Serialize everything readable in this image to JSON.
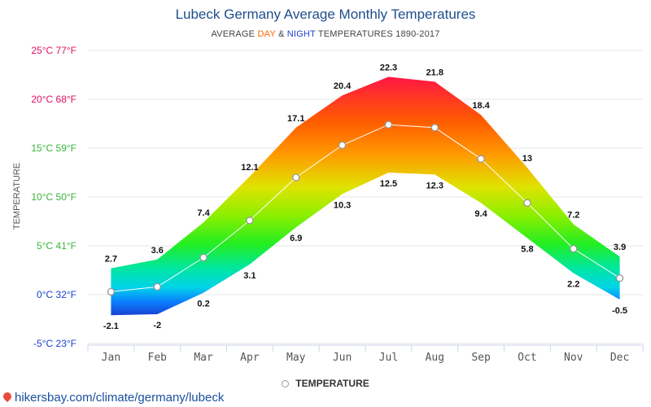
{
  "title": "Lubeck Germany Average Monthly Temperatures",
  "subtitle": {
    "prefix": "AVERAGE ",
    "day": "DAY",
    "amp": " & ",
    "night": "NIGHT",
    "suffix": " TEMPERATURES 1890-2017"
  },
  "legend": {
    "label": "TEMPERATURE",
    "icon": "circle-marker-icon"
  },
  "source": {
    "text": "hikersbay.com/climate/germany/lubeck",
    "icon": "location-pin-icon"
  },
  "colors": {
    "day_label": "#ff6600",
    "night_label": "#1a3fd0",
    "title": "#1f4e8c",
    "line": "#ffffff",
    "grid": "#e6e6e6"
  },
  "chart_data": {
    "type": "area",
    "categories": [
      "Jan",
      "Feb",
      "Mar",
      "Apr",
      "May",
      "Jun",
      "Jul",
      "Aug",
      "Sep",
      "Oct",
      "Nov",
      "Dec"
    ],
    "ylabel": "TEMPERATURE",
    "ylim": [
      -5,
      25
    ],
    "y_ticks": [
      {
        "value": 25,
        "label": "25°C 77°F",
        "color": "#e0115f"
      },
      {
        "value": 20,
        "label": "20°C 68°F",
        "color": "#e0115f"
      },
      {
        "value": 15,
        "label": "15°C 59°F",
        "color": "#3cb33c"
      },
      {
        "value": 10,
        "label": "10°C 50°F",
        "color": "#3cb33c"
      },
      {
        "value": 5,
        "label": "5°C 41°F",
        "color": "#3cb33c"
      },
      {
        "value": 0,
        "label": "0°C 32°F",
        "color": "#1a3fd0"
      },
      {
        "value": -5,
        "label": "-5°C 23°F",
        "color": "#1a3fd0"
      }
    ],
    "series": [
      {
        "name": "DAY",
        "values": [
          2.7,
          3.6,
          7.4,
          12.1,
          17.1,
          20.4,
          22.3,
          21.8,
          18.4,
          13,
          7.2,
          3.9
        ]
      },
      {
        "name": "NIGHT",
        "values": [
          -2.1,
          -2,
          0.2,
          3.1,
          6.9,
          10.3,
          12.5,
          12.3,
          9.4,
          5.8,
          2.2,
          -0.5
        ]
      },
      {
        "name": "TEMPERATURE",
        "values": [
          0.3,
          0.8,
          3.8,
          7.6,
          12.0,
          15.3,
          17.4,
          17.1,
          13.9,
          9.4,
          4.7,
          1.7
        ]
      }
    ],
    "day_labels": [
      "2.7",
      "3.6",
      "7.4",
      "12.1",
      "17.1",
      "20.4",
      "22.3",
      "21.8",
      "18.4",
      "13",
      "7.2",
      "3.9"
    ],
    "night_labels": [
      "-2.1",
      "-2",
      "0.2",
      "3.1",
      "6.9",
      "10.3",
      "12.5",
      "12.3",
      "9.4",
      "5.8",
      "2.2",
      "-0.5"
    ],
    "grid": true,
    "legend_position": "bottom-center"
  }
}
